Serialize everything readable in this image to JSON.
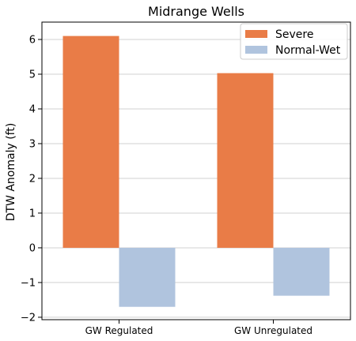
{
  "chart_data": {
    "type": "bar",
    "title": "Midrange Wells",
    "xlabel": "",
    "ylabel": "DTW Anomaly (ft)",
    "categories": [
      "GW Regulated",
      "GW Unregulated"
    ],
    "series": [
      {
        "name": "Severe",
        "color": "#E97C47",
        "values": [
          6.1,
          5.03
        ]
      },
      {
        "name": "Normal-Wet",
        "color": "#B0C4DE",
        "values": [
          -1.7,
          -1.38
        ]
      }
    ],
    "ylim": [
      -2.07,
      6.5
    ],
    "yticks": [
      -2,
      -1,
      0,
      1,
      2,
      3,
      4,
      5,
      6
    ],
    "ytick_labels": [
      "−2",
      "−1",
      "0",
      "1",
      "2",
      "3",
      "4",
      "5",
      "6"
    ],
    "grid": "horizontal",
    "legend_position": "top-right"
  }
}
